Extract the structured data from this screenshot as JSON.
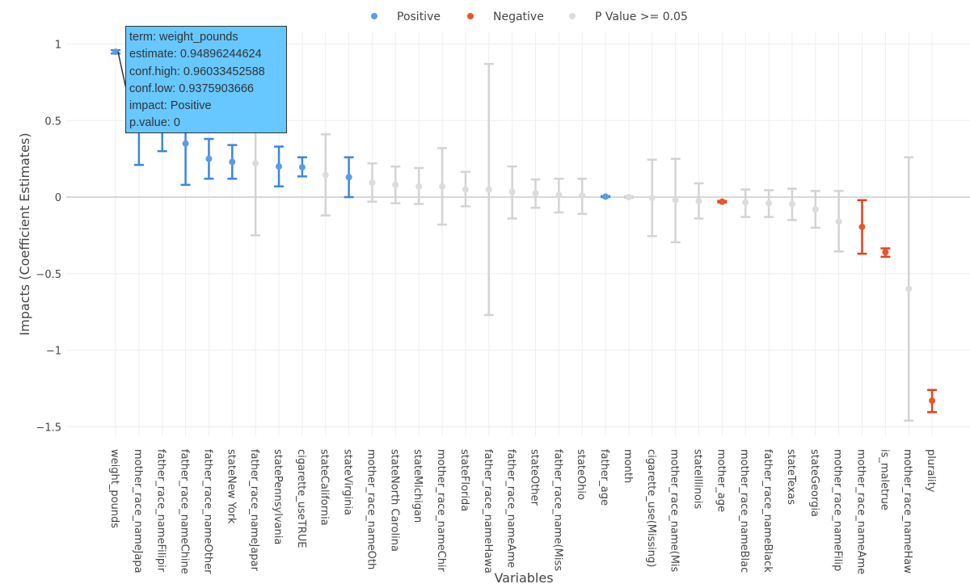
{
  "chart_data": {
    "type": "scatter",
    "subtype": "error-bar",
    "xlabel": "Variables",
    "ylabel": "Impacts (Coefficient Estimates)",
    "ylim": [
      -1.58,
      1.1
    ],
    "yticks": [
      1,
      0.5,
      0,
      -0.5,
      -1,
      -1.5
    ],
    "ytick_labels": [
      "1",
      "0.5",
      "0",
      "−0.5",
      "−1",
      "−1.5"
    ],
    "grid": true,
    "legend_placement": "top-center",
    "legend": [
      {
        "name": "Positive",
        "color": "#5b9be8"
      },
      {
        "name": "Negative",
        "color": "#e8562a"
      },
      {
        "name": "P Value >= 0.05",
        "color": "#dcdcdc"
      }
    ],
    "colors": {
      "Positive": "#3a86e0",
      "Negative": "#e8401c",
      "P Value >= 0.05": "#d3d3d3"
    },
    "points": [
      {
        "term": "weight_pounds",
        "estimate": 0.949,
        "high": 0.96,
        "low": 0.938,
        "impact": "Positive"
      },
      {
        "term": "mother_race_nameJapa",
        "estimate": 0.56,
        "high": 0.91,
        "low": 0.21,
        "impact": "Positive"
      },
      {
        "term": "father_race_nameFilipir",
        "estimate": 0.5,
        "high": 0.7,
        "low": 0.3,
        "impact": "Positive"
      },
      {
        "term": "father_race_nameChine",
        "estimate": 0.35,
        "high": 0.62,
        "low": 0.08,
        "impact": "Positive"
      },
      {
        "term": "father_race_nameOther",
        "estimate": 0.25,
        "high": 0.38,
        "low": 0.12,
        "impact": "Positive"
      },
      {
        "term": "stateNew York",
        "estimate": 0.23,
        "high": 0.34,
        "low": 0.12,
        "impact": "Positive"
      },
      {
        "term": "father_race_nameJapar",
        "estimate": 0.22,
        "high": 0.68,
        "low": -0.25,
        "impact": "P Value >= 0.05"
      },
      {
        "term": "statePennsylvania",
        "estimate": 0.2,
        "high": 0.33,
        "low": 0.07,
        "impact": "Positive"
      },
      {
        "term": "cigarette_useTRUE",
        "estimate": 0.195,
        "high": 0.26,
        "low": 0.135,
        "impact": "Positive"
      },
      {
        "term": "stateCalifornia",
        "estimate": 0.145,
        "high": 0.41,
        "low": -0.12,
        "impact": "P Value >= 0.05"
      },
      {
        "term": "stateVirginia",
        "estimate": 0.13,
        "high": 0.26,
        "low": 0.0,
        "impact": "Positive"
      },
      {
        "term": "mother_race_nameOth",
        "estimate": 0.095,
        "high": 0.22,
        "low": -0.03,
        "impact": "P Value >= 0.05"
      },
      {
        "term": "stateNorth Carolina",
        "estimate": 0.08,
        "high": 0.2,
        "low": -0.04,
        "impact": "P Value >= 0.05"
      },
      {
        "term": "stateMichigan",
        "estimate": 0.07,
        "high": 0.19,
        "low": -0.045,
        "impact": "P Value >= 0.05"
      },
      {
        "term": "mother_race_nameChir",
        "estimate": 0.07,
        "high": 0.32,
        "low": -0.18,
        "impact": "P Value >= 0.05"
      },
      {
        "term": "stateFlorida",
        "estimate": 0.05,
        "high": 0.165,
        "low": -0.06,
        "impact": "P Value >= 0.05"
      },
      {
        "term": "father_race_nameHawa",
        "estimate": 0.05,
        "high": 0.87,
        "low": -0.77,
        "impact": "P Value >= 0.05"
      },
      {
        "term": "father_race_nameAme",
        "estimate": 0.035,
        "high": 0.2,
        "low": -0.14,
        "impact": "P Value >= 0.05"
      },
      {
        "term": "stateOther",
        "estimate": 0.025,
        "high": 0.115,
        "low": -0.07,
        "impact": "P Value >= 0.05"
      },
      {
        "term": "father_race_name(Miss",
        "estimate": 0.015,
        "high": 0.12,
        "low": -0.1,
        "impact": "P Value >= 0.05"
      },
      {
        "term": "stateOhio",
        "estimate": 0.01,
        "high": 0.12,
        "low": -0.11,
        "impact": "P Value >= 0.05"
      },
      {
        "term": "father_age",
        "estimate": 0.003,
        "high": 0.006,
        "low": 0.0,
        "impact": "Positive"
      },
      {
        "term": "month",
        "estimate": 0.0,
        "high": 0.005,
        "low": -0.005,
        "impact": "P Value >= 0.05"
      },
      {
        "term": "cigarette_use(Missing)",
        "estimate": -0.005,
        "high": 0.245,
        "low": -0.255,
        "impact": "P Value >= 0.05"
      },
      {
        "term": "mother_race_name(Mis",
        "estimate": -0.02,
        "high": 0.25,
        "low": -0.295,
        "impact": "P Value >= 0.05"
      },
      {
        "term": "stateIllinois",
        "estimate": -0.025,
        "high": 0.09,
        "low": -0.14,
        "impact": "P Value >= 0.05"
      },
      {
        "term": "mother_age",
        "estimate": -0.03,
        "high": -0.025,
        "low": -0.035,
        "impact": "Negative"
      },
      {
        "term": "mother_race_nameBlac",
        "estimate": -0.035,
        "high": 0.05,
        "low": -0.13,
        "impact": "P Value >= 0.05"
      },
      {
        "term": "father_race_nameBlack",
        "estimate": -0.04,
        "high": 0.045,
        "low": -0.13,
        "impact": "P Value >= 0.05"
      },
      {
        "term": "stateTexas",
        "estimate": -0.045,
        "high": 0.055,
        "low": -0.15,
        "impact": "P Value >= 0.05"
      },
      {
        "term": "stateGeorgia",
        "estimate": -0.08,
        "high": 0.04,
        "low": -0.2,
        "impact": "P Value >= 0.05"
      },
      {
        "term": "mother_race_nameFilip",
        "estimate": -0.16,
        "high": 0.04,
        "low": -0.355,
        "impact": "P Value >= 0.05"
      },
      {
        "term": "mother_race_nameAme",
        "estimate": -0.195,
        "high": -0.02,
        "low": -0.37,
        "impact": "Negative"
      },
      {
        "term": "is_maletrue",
        "estimate": -0.36,
        "high": -0.335,
        "low": -0.39,
        "impact": "Negative"
      },
      {
        "term": "mother_race_nameHaw",
        "estimate": -0.6,
        "high": 0.26,
        "low": -1.46,
        "impact": "P Value >= 0.05"
      },
      {
        "term": "plurality",
        "estimate": -1.33,
        "high": -1.26,
        "low": -1.405,
        "impact": "Negative"
      }
    ]
  },
  "tooltip": {
    "lines": [
      "term: weight_pounds",
      "estimate: 0.94896244624",
      "conf.high: 0.96033452588",
      "conf.low: 0.9375903666",
      "impact: Positive",
      "p.value: 0"
    ]
  }
}
